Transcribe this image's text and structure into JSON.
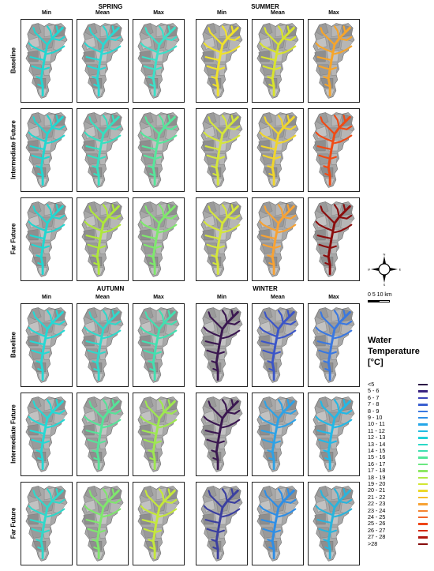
{
  "seasons": [
    {
      "name": "SPRING",
      "panels": [
        [
          "#22d6d0",
          "#2ad8d2",
          "#3be0c8"
        ],
        [
          "#22d6d0",
          "#35e0c0",
          "#55e69a"
        ],
        [
          "#22d6d0",
          "#aee839",
          "#7ee86c"
        ]
      ]
    },
    {
      "name": "SUMMER",
      "panels": [
        [
          "#f0e22a",
          "#d8e42c",
          "#f6a52a"
        ],
        [
          "#d5e63a",
          "#f0d52c",
          "#f04a14"
        ],
        [
          "#d5e63a",
          "#f7a234",
          "#8a0d0d"
        ]
      ]
    },
    {
      "name": "AUTUMN",
      "panels": [
        [
          "#25d8d4",
          "#30d8ca",
          "#42e0b0"
        ],
        [
          "#25d8d4",
          "#55e398",
          "#9ee84f"
        ],
        [
          "#30d8ca",
          "#7fe76d",
          "#c5e83a"
        ]
      ]
    },
    {
      "name": "WINTER",
      "panels": [
        [
          "#3a1750",
          "#3b55c8",
          "#3a78e0"
        ],
        [
          "#3a1750",
          "#2ea2e6",
          "#22b8e6"
        ],
        [
          "#3b3fa0",
          "#2e8ee6",
          "#2ab4dc"
        ]
      ]
    }
  ],
  "col_headers": [
    "Min",
    "Mean",
    "Max"
  ],
  "row_labels": [
    "Baseline",
    "Intermediate Future",
    "Far Future"
  ],
  "compass": {
    "n": "N",
    "s": "S",
    "e": "E",
    "w": "W"
  },
  "scale": {
    "label": "0   5   10 km"
  },
  "legend": {
    "title_line1": "Water",
    "title_line2": "Temperature",
    "title_line3": "[°C]",
    "items": [
      {
        "label": "<5",
        "color": "#2b0f45"
      },
      {
        "label": "5 - 6",
        "color": "#3a2380"
      },
      {
        "label": "6 - 7",
        "color": "#3a43b8"
      },
      {
        "label": "7 - 8",
        "color": "#3a5fd0"
      },
      {
        "label": "8 - 9",
        "color": "#3a78e0"
      },
      {
        "label": "9 - 10",
        "color": "#2e8ee6"
      },
      {
        "label": "10 - 11",
        "color": "#24a6e8"
      },
      {
        "label": "11 - 12",
        "color": "#20bce2"
      },
      {
        "label": "12 - 13",
        "color": "#22d0d8"
      },
      {
        "label": "13 - 14",
        "color": "#2ad8c6"
      },
      {
        "label": "14 - 15",
        "color": "#3ce0b0"
      },
      {
        "label": "15 - 16",
        "color": "#52e69a"
      },
      {
        "label": "16 - 17",
        "color": "#6ae882"
      },
      {
        "label": "17 - 18",
        "color": "#8ee862"
      },
      {
        "label": "18 - 19",
        "color": "#b2e844"
      },
      {
        "label": "19 - 20",
        "color": "#d2e632"
      },
      {
        "label": "20 - 21",
        "color": "#ecd82a"
      },
      {
        "label": "21 - 22",
        "color": "#f6bc2a"
      },
      {
        "label": "22 - 23",
        "color": "#f7a234"
      },
      {
        "label": "23 - 24",
        "color": "#f58430"
      },
      {
        "label": "24 - 25",
        "color": "#f26428"
      },
      {
        "label": "25 - 26",
        "color": "#ee4618"
      },
      {
        "label": "26 - 27",
        "color": "#d42a12"
      },
      {
        "label": "27 - 28",
        "color": "#b0160e"
      },
      {
        "label": ">28",
        "color": "#860c0c"
      }
    ]
  }
}
